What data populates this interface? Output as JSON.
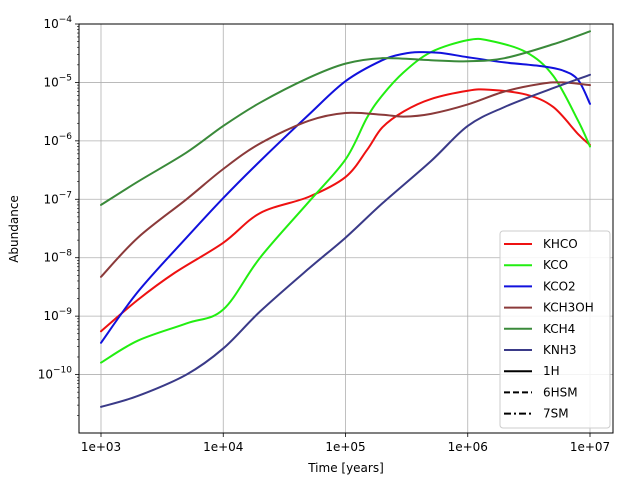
{
  "chart_data": {
    "type": "line",
    "title": "",
    "xlabel": "Time [years]",
    "ylabel": "Abundance",
    "xscale": "log",
    "yscale": "log",
    "xlim": [
      1000,
      10000000
    ],
    "ylim": [
      1e-11,
      0.0001
    ],
    "grid": true,
    "legend_position": "lower-right",
    "x_ticks": [
      {
        "value": 1000,
        "label": "1e+03"
      },
      {
        "value": 10000,
        "label": "1e+04"
      },
      {
        "value": 100000,
        "label": "1e+05"
      },
      {
        "value": 1000000,
        "label": "1e+06"
      },
      {
        "value": 10000000,
        "label": "1e+07"
      }
    ],
    "y_ticks": [
      {
        "value": 1e-10,
        "base": "10",
        "exp": "−10"
      },
      {
        "value": 1e-09,
        "base": "10",
        "exp": "−9"
      },
      {
        "value": 1e-08,
        "base": "10",
        "exp": "−8"
      },
      {
        "value": 1e-07,
        "base": "10",
        "exp": "−7"
      },
      {
        "value": 1e-06,
        "base": "10",
        "exp": "−6"
      },
      {
        "value": 1e-05,
        "base": "10",
        "exp": "−5"
      },
      {
        "value": 0.0001,
        "base": "10",
        "exp": "−4"
      }
    ],
    "series": [
      {
        "name": "KHCO",
        "color": "#ee1111",
        "points": [
          [
            1000,
            5.5e-10
          ],
          [
            2000,
            1.9e-09
          ],
          [
            4000,
            5.5e-09
          ],
          [
            10000,
            1.8e-08
          ],
          [
            20000,
            5.8e-08
          ],
          [
            50000,
            1.1e-07
          ],
          [
            100000,
            2.4e-07
          ],
          [
            150000,
            7e-07
          ],
          [
            200000,
            1.7e-06
          ],
          [
            300000,
            3.2e-06
          ],
          [
            500000,
            5.2e-06
          ],
          [
            1000000,
            7.2e-06
          ],
          [
            1500000,
            7.5e-06
          ],
          [
            3000000,
            6.2e-06
          ],
          [
            5000000,
            3.8e-06
          ],
          [
            8000000,
            1.3e-06
          ],
          [
            10000000,
            8.5e-07
          ]
        ]
      },
      {
        "name": "KCO",
        "color": "#22ee11",
        "points": [
          [
            1000,
            1.6e-10
          ],
          [
            2000,
            3.8e-10
          ],
          [
            5000,
            7.5e-10
          ],
          [
            10000,
            1.3e-09
          ],
          [
            20000,
            1e-08
          ],
          [
            50000,
            9e-08
          ],
          [
            100000,
            4.8e-07
          ],
          [
            150000,
            2.5e-06
          ],
          [
            200000,
            6e-06
          ],
          [
            300000,
            1.5e-05
          ],
          [
            500000,
            3.3e-05
          ],
          [
            1000000,
            5.3e-05
          ],
          [
            1500000,
            5.2e-05
          ],
          [
            3000000,
            3.3e-05
          ],
          [
            5000000,
            1.3e-05
          ],
          [
            8000000,
            2.2e-06
          ],
          [
            10000000,
            8e-07
          ]
        ]
      },
      {
        "name": "KCO2",
        "color": "#1111dd",
        "points": [
          [
            1000,
            3.5e-10
          ],
          [
            2000,
            2.6e-09
          ],
          [
            5000,
            2.2e-08
          ],
          [
            10000,
            1.05e-07
          ],
          [
            20000,
            4.5e-07
          ],
          [
            50000,
            2.8e-06
          ],
          [
            100000,
            1.05e-05
          ],
          [
            200000,
            2.4e-05
          ],
          [
            300000,
            3.1e-05
          ],
          [
            400000,
            3.3e-05
          ],
          [
            600000,
            3.2e-05
          ],
          [
            1000000,
            2.7e-05
          ],
          [
            2000000,
            2.2e-05
          ],
          [
            4000000,
            1.9e-05
          ],
          [
            6000000,
            1.6e-05
          ],
          [
            8000000,
            1.1e-05
          ],
          [
            10000000,
            4.3e-06
          ]
        ]
      },
      {
        "name": "KCH3OH",
        "color": "#8b3a3a",
        "points": [
          [
            1000,
            4.7e-09
          ],
          [
            2000,
            2.2e-08
          ],
          [
            5000,
            1e-07
          ],
          [
            10000,
            3.3e-07
          ],
          [
            20000,
            9e-07
          ],
          [
            50000,
            2.2e-06
          ],
          [
            100000,
            3e-06
          ],
          [
            200000,
            2.8e-06
          ],
          [
            300000,
            2.6e-06
          ],
          [
            500000,
            2.9e-06
          ],
          [
            1000000,
            4.2e-06
          ],
          [
            2000000,
            7e-06
          ],
          [
            4000000,
            9.5e-06
          ],
          [
            6000000,
            1e-05
          ],
          [
            10000000,
            9e-06
          ]
        ]
      },
      {
        "name": "KCH4",
        "color": "#3a8a3a",
        "points": [
          [
            1000,
            8e-08
          ],
          [
            2000,
            2e-07
          ],
          [
            5000,
            6.3e-07
          ],
          [
            10000,
            1.8e-06
          ],
          [
            20000,
            4.5e-06
          ],
          [
            50000,
            1.2e-05
          ],
          [
            100000,
            2.1e-05
          ],
          [
            200000,
            2.6e-05
          ],
          [
            500000,
            2.4e-05
          ],
          [
            1000000,
            2.3e-05
          ],
          [
            2000000,
            2.6e-05
          ],
          [
            5000000,
            4.5e-05
          ],
          [
            10000000,
            7.5e-05
          ]
        ]
      },
      {
        "name": "KNH3",
        "color": "#3a3a88",
        "points": [
          [
            1000,
            2.8e-11
          ],
          [
            2000,
            4.3e-11
          ],
          [
            5000,
            1e-10
          ],
          [
            10000,
            2.8e-10
          ],
          [
            20000,
            1.2e-09
          ],
          [
            50000,
            6.5e-09
          ],
          [
            100000,
            2.2e-08
          ],
          [
            200000,
            8.5e-08
          ],
          [
            500000,
            4.5e-07
          ],
          [
            1000000,
            1.8e-06
          ],
          [
            2000000,
            3.8e-06
          ],
          [
            5000000,
            8e-06
          ],
          [
            10000000,
            1.35e-05
          ]
        ]
      }
    ],
    "linestyle_legend": [
      {
        "name": "1H",
        "style": "solid"
      },
      {
        "name": "6HSM",
        "style": "dashed"
      },
      {
        "name": "7SM",
        "style": "dashdot"
      }
    ]
  }
}
